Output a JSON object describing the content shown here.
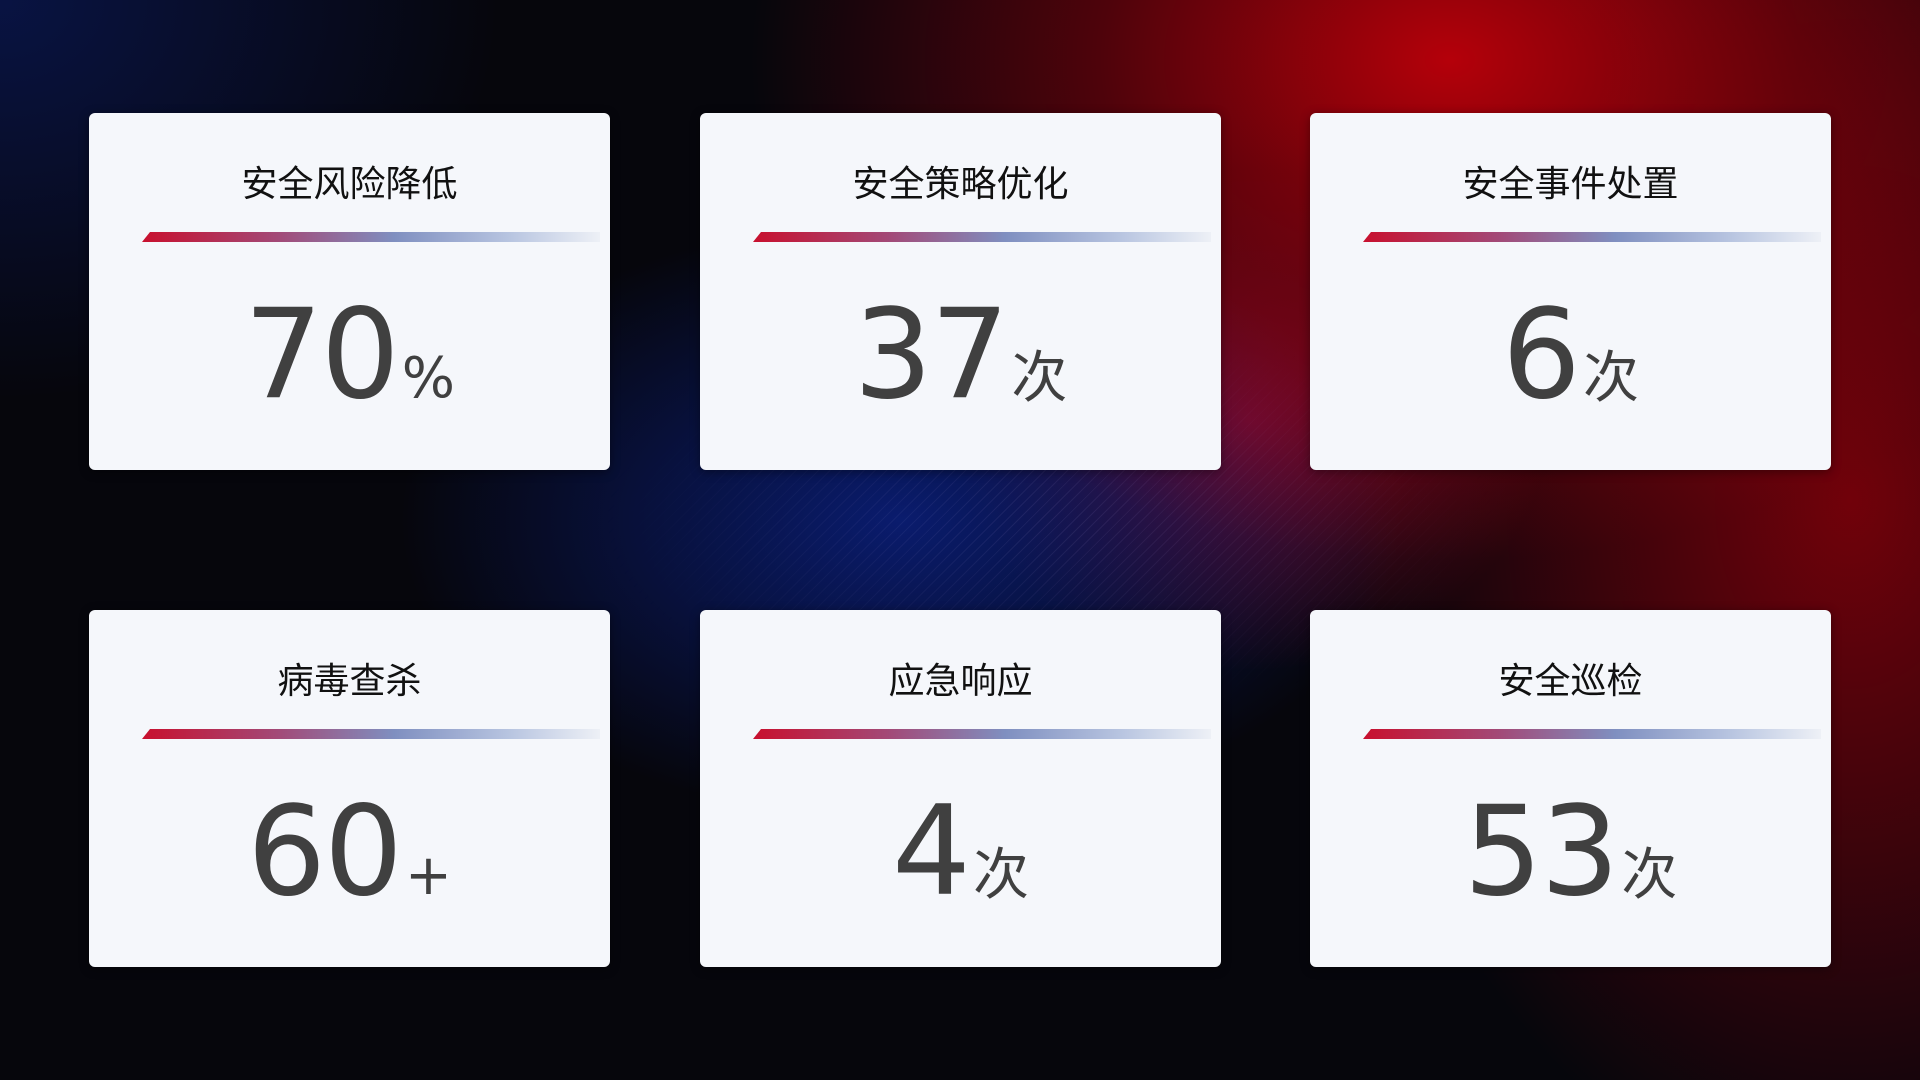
{
  "cards": [
    {
      "title": "安全风险降低",
      "value": "70",
      "unit": "%"
    },
    {
      "title": "安全策略优化",
      "value": "37",
      "unit": "次"
    },
    {
      "title": "安全事件处置",
      "value": "6",
      "unit": "次"
    },
    {
      "title": "病毒查杀",
      "value": "60",
      "unit": "+"
    },
    {
      "title": "应急响应",
      "value": "4",
      "unit": "次"
    },
    {
      "title": "安全巡检",
      "value": "53",
      "unit": "次"
    }
  ],
  "colors": {
    "accent_red": "#c8102e",
    "accent_blue": "#7f8fc0",
    "card_bg": "#f5f7fb",
    "value_text": "#404040"
  }
}
